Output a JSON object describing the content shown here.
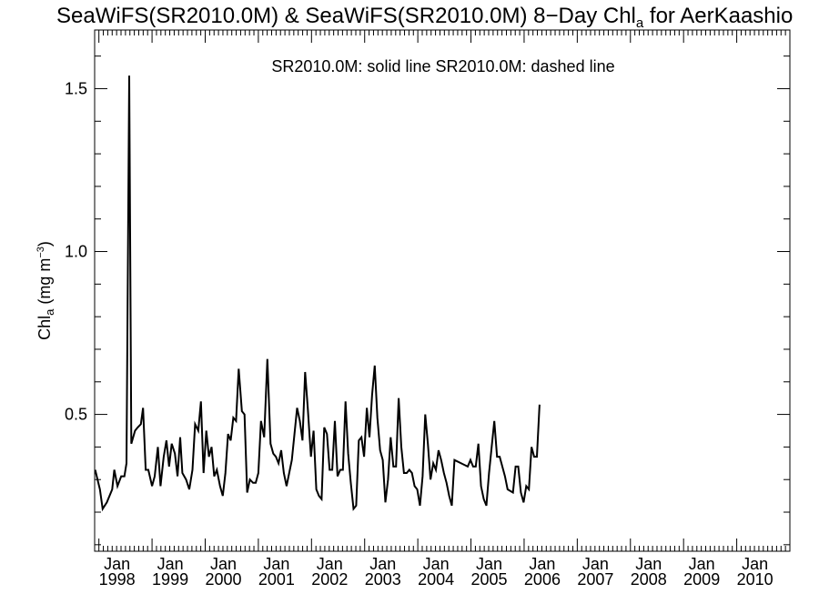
{
  "chart_data": {
    "type": "line",
    "title": {
      "prefix": "SeaWiFS(SR2010.0M) & SeaWiFS(SR2010.0M) 8−Day Chl",
      "sub": "a",
      "suffix": " for AerKaashio"
    },
    "ylabel": {
      "main": "Chl",
      "sub": "a",
      "unit_pre": " (mg m",
      "sup": "−3",
      "unit_post": ")"
    },
    "legend_text": "SR2010.0M: solid line   SR2010.0M: dashed line",
    "xlim": [
      1997.92,
      2011.0
    ],
    "ylim": [
      0.08,
      1.68
    ],
    "y_ticks": [
      0.5,
      1.0,
      1.5
    ],
    "y_tick_labels": [
      "0.5",
      "1.0",
      "1.5"
    ],
    "y_minor_step": 0.1,
    "x_tick_month_label": "Jan",
    "x_ticks": [
      1998,
      1999,
      2000,
      2001,
      2002,
      2003,
      2004,
      2005,
      2006,
      2007,
      2008,
      2009,
      2010
    ],
    "x_tick_labels": [
      "1998",
      "1999",
      "2000",
      "2001",
      "2002",
      "2003",
      "2004",
      "2005",
      "2006",
      "2007",
      "2008",
      "2009",
      "2010"
    ],
    "series": [
      {
        "style": "solid",
        "points": [
          [
            1997.93,
            0.33
          ],
          [
            1998.02,
            0.27
          ],
          [
            1998.07,
            0.21
          ],
          [
            1998.15,
            0.23
          ],
          [
            1998.25,
            0.27
          ],
          [
            1998.29,
            0.33
          ],
          [
            1998.35,
            0.28
          ],
          [
            1998.42,
            0.31
          ],
          [
            1998.48,
            0.31
          ],
          [
            1998.52,
            0.35
          ],
          [
            1998.57,
            1.54
          ],
          [
            1998.61,
            0.41
          ],
          [
            1998.68,
            0.45
          ],
          [
            1998.73,
            0.46
          ],
          [
            1998.79,
            0.47
          ],
          [
            1998.83,
            0.52
          ],
          [
            1998.88,
            0.33
          ],
          [
            1998.93,
            0.33
          ],
          [
            1999.0,
            0.28
          ],
          [
            1999.05,
            0.31
          ],
          [
            1999.11,
            0.4
          ],
          [
            1999.16,
            0.28
          ],
          [
            1999.22,
            0.37
          ],
          [
            1999.27,
            0.42
          ],
          [
            1999.32,
            0.34
          ],
          [
            1999.37,
            0.41
          ],
          [
            1999.43,
            0.38
          ],
          [
            1999.48,
            0.31
          ],
          [
            1999.53,
            0.43
          ],
          [
            1999.57,
            0.32
          ],
          [
            1999.64,
            0.3
          ],
          [
            1999.7,
            0.27
          ],
          [
            1999.76,
            0.33
          ],
          [
            1999.81,
            0.47
          ],
          [
            1999.87,
            0.45
          ],
          [
            1999.92,
            0.54
          ],
          [
            1999.97,
            0.32
          ],
          [
            2000.02,
            0.45
          ],
          [
            2000.07,
            0.37
          ],
          [
            2000.12,
            0.4
          ],
          [
            2000.17,
            0.31
          ],
          [
            2000.22,
            0.33
          ],
          [
            2000.28,
            0.28
          ],
          [
            2000.33,
            0.25
          ],
          [
            2000.38,
            0.32
          ],
          [
            2000.43,
            0.44
          ],
          [
            2000.48,
            0.42
          ],
          [
            2000.53,
            0.49
          ],
          [
            2000.58,
            0.48
          ],
          [
            2000.63,
            0.64
          ],
          [
            2000.69,
            0.51
          ],
          [
            2000.74,
            0.5
          ],
          [
            2000.79,
            0.26
          ],
          [
            2000.84,
            0.3
          ],
          [
            2000.9,
            0.29
          ],
          [
            2000.95,
            0.29
          ],
          [
            2001.0,
            0.32
          ],
          [
            2001.05,
            0.48
          ],
          [
            2001.11,
            0.43
          ],
          [
            2001.17,
            0.67
          ],
          [
            2001.23,
            0.41
          ],
          [
            2001.28,
            0.38
          ],
          [
            2001.33,
            0.37
          ],
          [
            2001.38,
            0.35
          ],
          [
            2001.43,
            0.39
          ],
          [
            2001.48,
            0.32
          ],
          [
            2001.53,
            0.28
          ],
          [
            2001.58,
            0.32
          ],
          [
            2001.63,
            0.36
          ],
          [
            2001.68,
            0.44
          ],
          [
            2001.73,
            0.52
          ],
          [
            2001.78,
            0.48
          ],
          [
            2001.83,
            0.42
          ],
          [
            2001.88,
            0.63
          ],
          [
            2001.93,
            0.52
          ],
          [
            2001.99,
            0.37
          ],
          [
            2002.04,
            0.45
          ],
          [
            2002.09,
            0.27
          ],
          [
            2002.14,
            0.25
          ],
          [
            2002.19,
            0.24
          ],
          [
            2002.24,
            0.46
          ],
          [
            2002.29,
            0.44
          ],
          [
            2002.34,
            0.33
          ],
          [
            2002.39,
            0.33
          ],
          [
            2002.44,
            0.48
          ],
          [
            2002.49,
            0.31
          ],
          [
            2002.54,
            0.33
          ],
          [
            2002.59,
            0.33
          ],
          [
            2002.64,
            0.54
          ],
          [
            2002.69,
            0.38
          ],
          [
            2002.74,
            0.29
          ],
          [
            2002.79,
            0.21
          ],
          [
            2002.84,
            0.22
          ],
          [
            2002.89,
            0.42
          ],
          [
            2002.94,
            0.43
          ],
          [
            2002.99,
            0.37
          ],
          [
            2003.04,
            0.52
          ],
          [
            2003.09,
            0.43
          ],
          [
            2003.14,
            0.56
          ],
          [
            2003.19,
            0.65
          ],
          [
            2003.24,
            0.49
          ],
          [
            2003.29,
            0.39
          ],
          [
            2003.34,
            0.36
          ],
          [
            2003.39,
            0.23
          ],
          [
            2003.44,
            0.3
          ],
          [
            2003.49,
            0.43
          ],
          [
            2003.54,
            0.34
          ],
          [
            2003.59,
            0.34
          ],
          [
            2003.64,
            0.55
          ],
          [
            2003.69,
            0.4
          ],
          [
            2003.74,
            0.32
          ],
          [
            2003.79,
            0.32
          ],
          [
            2003.84,
            0.33
          ],
          [
            2003.89,
            0.32
          ],
          [
            2003.94,
            0.28
          ],
          [
            2003.99,
            0.27
          ],
          [
            2004.04,
            0.22
          ],
          [
            2004.09,
            0.31
          ],
          [
            2004.14,
            0.5
          ],
          [
            2004.19,
            0.41
          ],
          [
            2004.24,
            0.3
          ],
          [
            2004.29,
            0.35
          ],
          [
            2004.34,
            0.33
          ],
          [
            2004.39,
            0.39
          ],
          [
            2004.44,
            0.36
          ],
          [
            2004.49,
            0.32
          ],
          [
            2004.54,
            0.29
          ],
          [
            2004.59,
            0.25
          ],
          [
            2004.64,
            0.22
          ],
          [
            2004.69,
            0.36
          ],
          [
            2004.94,
            0.34
          ],
          [
            2004.99,
            0.36
          ],
          [
            2005.04,
            0.34
          ],
          [
            2005.09,
            0.34
          ],
          [
            2005.14,
            0.41
          ],
          [
            2005.19,
            0.28
          ],
          [
            2005.24,
            0.24
          ],
          [
            2005.29,
            0.22
          ],
          [
            2005.34,
            0.32
          ],
          [
            2005.39,
            0.4
          ],
          [
            2005.44,
            0.48
          ],
          [
            2005.49,
            0.37
          ],
          [
            2005.54,
            0.37
          ],
          [
            2005.64,
            0.31
          ],
          [
            2005.69,
            0.27
          ],
          [
            2005.79,
            0.26
          ],
          [
            2005.84,
            0.34
          ],
          [
            2005.89,
            0.34
          ],
          [
            2005.94,
            0.26
          ],
          [
            2005.99,
            0.23
          ],
          [
            2006.04,
            0.28
          ],
          [
            2006.09,
            0.27
          ],
          [
            2006.14,
            0.4
          ],
          [
            2006.19,
            0.37
          ],
          [
            2006.24,
            0.37
          ],
          [
            2006.29,
            0.53
          ]
        ]
      }
    ]
  }
}
